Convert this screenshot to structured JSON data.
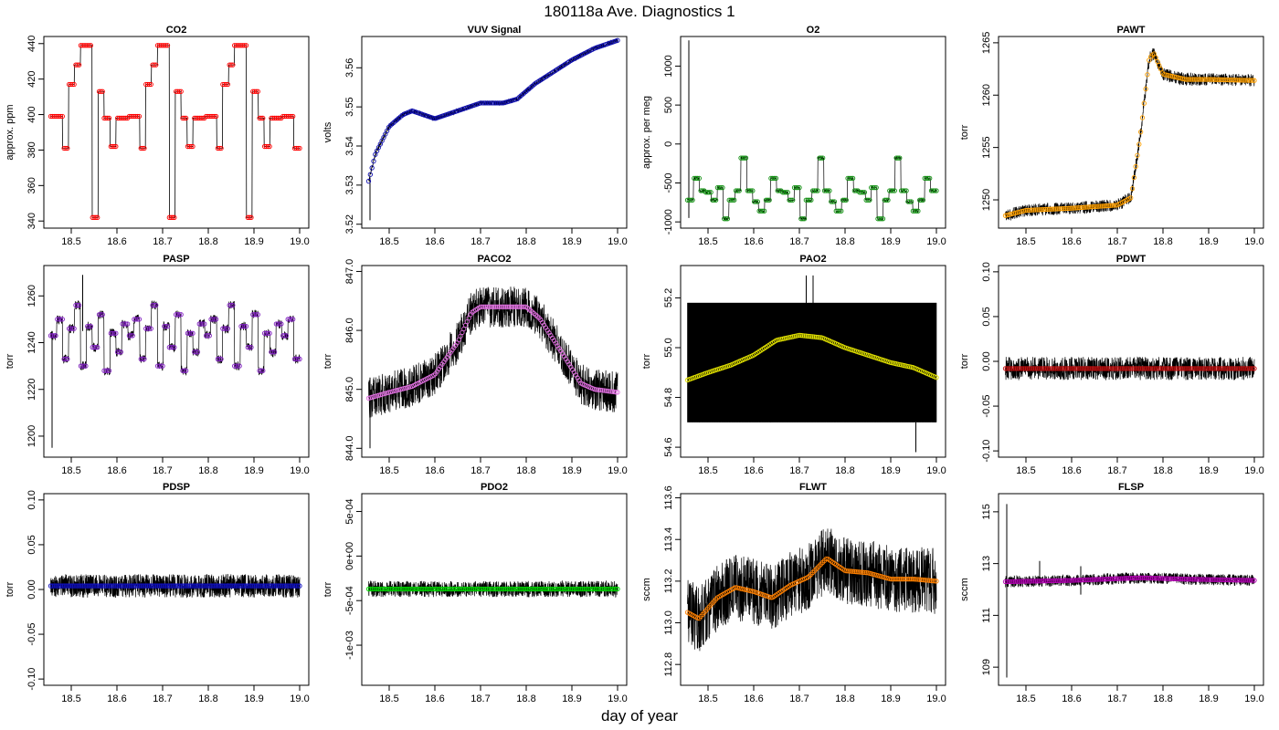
{
  "figure": {
    "title": "180118a   Ave. Diagnostics 1",
    "xlabel": "day of year"
  },
  "chart_data": [
    {
      "type": "line",
      "title": "CO2",
      "ylabel": "approx. ppm",
      "xlim": [
        18.44,
        19.02
      ],
      "ylim": [
        336,
        444
      ],
      "yticks": [
        {
          "v": 340,
          "label": "340"
        },
        {
          "v": 360,
          "label": "360"
        },
        {
          "v": 380,
          "label": "380"
        },
        {
          "v": 400,
          "label": "400"
        },
        {
          "v": 420,
          "label": "420"
        },
        {
          "v": 440,
          "label": "440"
        }
      ],
      "xticks": [
        {
          "v": 18.5,
          "label": "18.5"
        },
        {
          "v": 18.6,
          "label": "18.6"
        },
        {
          "v": 18.7,
          "label": "18.7"
        },
        {
          "v": 18.8,
          "label": "18.8"
        },
        {
          "v": 18.9,
          "label": "18.9"
        },
        {
          "v": 19.0,
          "label": "19.0"
        }
      ],
      "x_start": 18.455,
      "x_end": 19.0,
      "pattern": [
        399,
        399,
        381,
        417,
        428,
        439,
        439,
        342,
        413,
        398,
        382,
        398,
        398
      ],
      "noise": 0,
      "spikes": [],
      "point_color": "#ff0000",
      "point_count": 150
    },
    {
      "type": "line",
      "title": "VUV Signal",
      "ylabel": "volts",
      "xlim": [
        18.44,
        19.02
      ],
      "ylim": [
        3.519,
        3.568
      ],
      "yticks": [
        {
          "v": 3.52,
          "label": "3.52"
        },
        {
          "v": 3.53,
          "label": "3.53"
        },
        {
          "v": 3.54,
          "label": "3.54"
        },
        {
          "v": 3.55,
          "label": "3.55"
        },
        {
          "v": 3.56,
          "label": "3.56"
        }
      ],
      "xticks": [
        {
          "v": 18.5,
          "label": "18.5"
        },
        {
          "v": 18.6,
          "label": "18.6"
        },
        {
          "v": 18.7,
          "label": "18.7"
        },
        {
          "v": 18.8,
          "label": "18.8"
        },
        {
          "v": 18.9,
          "label": "18.9"
        },
        {
          "v": 19.0,
          "label": "19.0"
        }
      ],
      "x_start": 18.455,
      "x_end": 19.0,
      "curve": [
        [
          18.455,
          3.531
        ],
        [
          18.47,
          3.538
        ],
        [
          18.5,
          3.545
        ],
        [
          18.53,
          3.548
        ],
        [
          18.55,
          3.549
        ],
        [
          18.6,
          3.547
        ],
        [
          18.65,
          3.549
        ],
        [
          18.7,
          3.551
        ],
        [
          18.75,
          3.551
        ],
        [
          18.78,
          3.552
        ],
        [
          18.82,
          3.556
        ],
        [
          18.86,
          3.559
        ],
        [
          18.9,
          3.562
        ],
        [
          18.95,
          3.565
        ],
        [
          19.0,
          3.567
        ]
      ],
      "noise": 0.0006,
      "spikes": [
        [
          18.458,
          3.521,
          3.532
        ]
      ],
      "point_color": "#1010b0",
      "point_count": 150
    },
    {
      "type": "line",
      "title": "O2",
      "ylabel": "approx. per meg",
      "xlim": [
        18.44,
        19.02
      ],
      "ylim": [
        -1080,
        1380
      ],
      "yticks": [
        {
          "v": -1000,
          "label": "-1000"
        },
        {
          "v": -500,
          "label": "-500"
        },
        {
          "v": 0,
          "label": "0"
        },
        {
          "v": 500,
          "label": "500"
        },
        {
          "v": 1000,
          "label": "1000"
        }
      ],
      "xticks": [
        {
          "v": 18.5,
          "label": "18.5"
        },
        {
          "v": 18.6,
          "label": "18.6"
        },
        {
          "v": 18.7,
          "label": "18.7"
        },
        {
          "v": 18.8,
          "label": "18.8"
        },
        {
          "v": 18.9,
          "label": "18.9"
        },
        {
          "v": 19.0,
          "label": "19.0"
        }
      ],
      "x_start": 18.455,
      "x_end": 19.0,
      "pattern": [
        -720,
        -440,
        -600,
        -620,
        -720,
        -560,
        -960,
        -720,
        -600,
        -180,
        -600,
        -740,
        -860
      ],
      "noise": 15,
      "spikes": [
        [
          18.458,
          -950,
          1330
        ]
      ],
      "point_color": "#109010",
      "point_count": 150
    },
    {
      "type": "line",
      "title": "PAWT",
      "ylabel": "torr",
      "xlim": [
        18.44,
        19.02
      ],
      "ylim": [
        1247.3,
        1265.6
      ],
      "yticks": [
        {
          "v": 1250,
          "label": "1250"
        },
        {
          "v": 1255,
          "label": "1255"
        },
        {
          "v": 1260,
          "label": "1260"
        },
        {
          "v": 1265,
          "label": "1265"
        }
      ],
      "xticks": [
        {
          "v": 18.5,
          "label": "18.5"
        },
        {
          "v": 18.6,
          "label": "18.6"
        },
        {
          "v": 18.7,
          "label": "18.7"
        },
        {
          "v": 18.8,
          "label": "18.8"
        },
        {
          "v": 18.9,
          "label": "18.9"
        },
        {
          "v": 19.0,
          "label": "19.0"
        }
      ],
      "x_start": 18.455,
      "x_end": 19.0,
      "curve": [
        [
          18.455,
          1248.5
        ],
        [
          18.5,
          1249.0
        ],
        [
          18.6,
          1249.2
        ],
        [
          18.7,
          1249.5
        ],
        [
          18.73,
          1250.2
        ],
        [
          18.75,
          1256.0
        ],
        [
          18.77,
          1263.5
        ],
        [
          18.78,
          1264.0
        ],
        [
          18.8,
          1262.0
        ],
        [
          18.85,
          1261.5
        ],
        [
          18.9,
          1261.5
        ],
        [
          19.0,
          1261.4
        ]
      ],
      "noise": 0.6,
      "spikes": [],
      "point_color": "#ffa000",
      "point_count": 150
    },
    {
      "type": "line",
      "title": "PASP",
      "ylabel": "torr",
      "xlim": [
        18.44,
        19.02
      ],
      "ylim": [
        1191,
        1273
      ],
      "yticks": [
        {
          "v": 1200,
          "label": "1200"
        },
        {
          "v": 1220,
          "label": "1220"
        },
        {
          "v": 1240,
          "label": "1240"
        },
        {
          "v": 1260,
          "label": "1260"
        }
      ],
      "xticks": [
        {
          "v": 18.5,
          "label": "18.5"
        },
        {
          "v": 18.6,
          "label": "18.6"
        },
        {
          "v": 18.7,
          "label": "18.7"
        },
        {
          "v": 18.8,
          "label": "18.8"
        },
        {
          "v": 18.9,
          "label": "18.9"
        },
        {
          "v": 19.0,
          "label": "19.0"
        }
      ],
      "x_start": 18.455,
      "x_end": 19.0,
      "pattern": [
        1243,
        1250,
        1233,
        1246,
        1256,
        1230,
        1247,
        1238,
        1252,
        1228,
        1244,
        1236,
        1248
      ],
      "noise": 2,
      "spikes": [
        [
          18.458,
          1195,
          1245
        ],
        [
          18.525,
          1245,
          1269
        ]
      ],
      "point_color": "#8020c0",
      "point_count": 150
    },
    {
      "type": "line",
      "title": "PACO2",
      "ylabel": "torr",
      "xlim": [
        18.44,
        19.02
      ],
      "ylim": [
        843.85,
        847.1
      ],
      "yticks": [
        {
          "v": 844,
          "label": "844.0"
        },
        {
          "v": 845,
          "label": "845.0"
        },
        {
          "v": 846,
          "label": "846.0"
        },
        {
          "v": 847,
          "label": "847.0"
        }
      ],
      "xticks": [
        {
          "v": 18.5,
          "label": "18.5"
        },
        {
          "v": 18.6,
          "label": "18.6"
        },
        {
          "v": 18.7,
          "label": "18.7"
        },
        {
          "v": 18.8,
          "label": "18.8"
        },
        {
          "v": 18.9,
          "label": "18.9"
        },
        {
          "v": 19.0,
          "label": "19.0"
        }
      ],
      "x_start": 18.455,
      "x_end": 19.0,
      "curve": [
        [
          18.455,
          844.85
        ],
        [
          18.5,
          844.95
        ],
        [
          18.55,
          845.05
        ],
        [
          18.6,
          845.25
        ],
        [
          18.65,
          845.8
        ],
        [
          18.68,
          846.3
        ],
        [
          18.7,
          846.4
        ],
        [
          18.8,
          846.4
        ],
        [
          18.83,
          846.2
        ],
        [
          18.88,
          845.6
        ],
        [
          18.92,
          845.1
        ],
        [
          18.95,
          845.0
        ],
        [
          19.0,
          844.95
        ]
      ],
      "noise": 0.35,
      "spikes": [
        [
          18.458,
          844.0,
          845.2
        ]
      ],
      "point_color": "#e070e0",
      "point_count": 150
    },
    {
      "type": "line",
      "title": "PAO2",
      "ylabel": "torr",
      "xlim": [
        18.44,
        19.02
      ],
      "ylim": [
        54.56,
        55.33
      ],
      "yticks": [
        {
          "v": 54.6,
          "label": "54.6"
        },
        {
          "v": 54.8,
          "label": "54.8"
        },
        {
          "v": 55.0,
          "label": "55.0"
        },
        {
          "v": 55.2,
          "label": "55.2"
        }
      ],
      "xticks": [
        {
          "v": 18.5,
          "label": "18.5"
        },
        {
          "v": 18.6,
          "label": "18.6"
        },
        {
          "v": 18.7,
          "label": "18.7"
        },
        {
          "v": 18.8,
          "label": "18.8"
        },
        {
          "v": 18.9,
          "label": "18.9"
        },
        {
          "v": 19.0,
          "label": "19.0"
        }
      ],
      "x_start": 18.455,
      "x_end": 19.0,
      "curve": [
        [
          18.455,
          54.87
        ],
        [
          18.5,
          54.9
        ],
        [
          18.55,
          54.93
        ],
        [
          18.6,
          54.97
        ],
        [
          18.65,
          55.03
        ],
        [
          18.7,
          55.05
        ],
        [
          18.75,
          55.04
        ],
        [
          18.8,
          55.0
        ],
        [
          18.85,
          54.97
        ],
        [
          18.9,
          54.94
        ],
        [
          18.95,
          54.92
        ],
        [
          19.0,
          54.88
        ]
      ],
      "noise": 0,
      "band": [
        54.7,
        55.18
      ],
      "spikes": [
        [
          18.715,
          55.15,
          55.29
        ],
        [
          18.73,
          55.15,
          55.29
        ],
        [
          18.955,
          54.58,
          54.7
        ]
      ],
      "point_color": "#e0e000",
      "point_count": 150
    },
    {
      "type": "line",
      "title": "PDWT",
      "ylabel": "torr",
      "xlim": [
        18.44,
        19.02
      ],
      "ylim": [
        -0.107,
        0.107
      ],
      "yticks": [
        {
          "v": -0.1,
          "label": "-0.10"
        },
        {
          "v": -0.05,
          "label": "-0.05"
        },
        {
          "v": 0,
          "label": "0.00"
        },
        {
          "v": 0.05,
          "label": "0.05"
        },
        {
          "v": 0.1,
          "label": "0.10"
        }
      ],
      "xticks": [
        {
          "v": 18.5,
          "label": "18.5"
        },
        {
          "v": 18.6,
          "label": "18.6"
        },
        {
          "v": 18.7,
          "label": "18.7"
        },
        {
          "v": 18.8,
          "label": "18.8"
        },
        {
          "v": 18.9,
          "label": "18.9"
        },
        {
          "v": 19.0,
          "label": "19.0"
        }
      ],
      "x_start": 18.455,
      "x_end": 19.0,
      "curve": [
        [
          18.455,
          -0.008
        ],
        [
          19.0,
          -0.008
        ]
      ],
      "noise": 0.013,
      "spikes": [],
      "point_color": "#c01010",
      "point_count": 150
    },
    {
      "type": "line",
      "title": "PDSP",
      "ylabel": "torr",
      "xlim": [
        18.44,
        19.02
      ],
      "ylim": [
        -0.107,
        0.107
      ],
      "yticks": [
        {
          "v": -0.1,
          "label": "-0.10"
        },
        {
          "v": -0.05,
          "label": "-0.05"
        },
        {
          "v": 0,
          "label": "0.00"
        },
        {
          "v": 0.05,
          "label": "0.05"
        },
        {
          "v": 0.1,
          "label": "0.10"
        }
      ],
      "xticks": [
        {
          "v": 18.5,
          "label": "18.5"
        },
        {
          "v": 18.6,
          "label": "18.6"
        },
        {
          "v": 18.7,
          "label": "18.7"
        },
        {
          "v": 18.8,
          "label": "18.8"
        },
        {
          "v": 18.9,
          "label": "18.9"
        },
        {
          "v": 19.0,
          "label": "19.0"
        }
      ],
      "x_start": 18.455,
      "x_end": 19.0,
      "curve": [
        [
          18.455,
          0.004
        ],
        [
          19.0,
          0.004
        ]
      ],
      "noise": 0.013,
      "spikes": [],
      "point_color": "#1010c0",
      "point_count": 150
    },
    {
      "type": "line",
      "title": "PDO2",
      "ylabel": "torr",
      "xlim": [
        18.44,
        19.02
      ],
      "ylim": [
        -0.00145,
        0.0007
      ],
      "yticks": [
        {
          "v": -0.001,
          "label": "-1e-03"
        },
        {
          "v": -0.0005,
          "label": "-5e-04"
        },
        {
          "v": 0,
          "label": "0e+00"
        },
        {
          "v": 0.0005,
          "label": "5e-04"
        }
      ],
      "xticks": [
        {
          "v": 18.5,
          "label": "18.5"
        },
        {
          "v": 18.6,
          "label": "18.6"
        },
        {
          "v": 18.7,
          "label": "18.7"
        },
        {
          "v": 18.8,
          "label": "18.8"
        },
        {
          "v": 18.9,
          "label": "18.9"
        },
        {
          "v": 19.0,
          "label": "19.0"
        }
      ],
      "x_start": 18.455,
      "x_end": 19.0,
      "curve": [
        [
          18.455,
          -0.00037
        ],
        [
          19.0,
          -0.00037
        ]
      ],
      "noise": 9e-05,
      "spikes": [],
      "point_color": "#00d000",
      "point_count": 150
    },
    {
      "type": "line",
      "title": "FLWT",
      "ylabel": "sccm",
      "xlim": [
        18.44,
        19.02
      ],
      "ylim": [
        112.7,
        113.62
      ],
      "yticks": [
        {
          "v": 112.8,
          "label": "112.8"
        },
        {
          "v": 113.0,
          "label": "113.0"
        },
        {
          "v": 113.2,
          "label": "113.2"
        },
        {
          "v": 113.4,
          "label": "113.4"
        },
        {
          "v": 113.6,
          "label": "113.6"
        }
      ],
      "xticks": [
        {
          "v": 18.5,
          "label": "18.5"
        },
        {
          "v": 18.6,
          "label": "18.6"
        },
        {
          "v": 18.7,
          "label": "18.7"
        },
        {
          "v": 18.8,
          "label": "18.8"
        },
        {
          "v": 18.9,
          "label": "18.9"
        },
        {
          "v": 19.0,
          "label": "19.0"
        }
      ],
      "x_start": 18.455,
      "x_end": 19.0,
      "curve": [
        [
          18.455,
          113.05
        ],
        [
          18.48,
          113.02
        ],
        [
          18.52,
          113.12
        ],
        [
          18.56,
          113.17
        ],
        [
          18.6,
          113.15
        ],
        [
          18.64,
          113.12
        ],
        [
          18.68,
          113.18
        ],
        [
          18.72,
          113.22
        ],
        [
          18.76,
          113.31
        ],
        [
          18.8,
          113.25
        ],
        [
          18.85,
          113.24
        ],
        [
          18.9,
          113.21
        ],
        [
          18.95,
          113.21
        ],
        [
          19.0,
          113.2
        ]
      ],
      "noise": 0.16,
      "spikes": [],
      "point_color": "#ff8000",
      "point_count": 150
    },
    {
      "type": "line",
      "title": "FLSP",
      "ylabel": "sccm",
      "xlim": [
        18.44,
        19.02
      ],
      "ylim": [
        108.3,
        115.7
      ],
      "yticks": [
        {
          "v": 109,
          "label": "109"
        },
        {
          "v": 111,
          "label": "111"
        },
        {
          "v": 113,
          "label": "113"
        },
        {
          "v": 115,
          "label": "115"
        }
      ],
      "xticks": [
        {
          "v": 18.5,
          "label": "18.5"
        },
        {
          "v": 18.6,
          "label": "18.6"
        },
        {
          "v": 18.7,
          "label": "18.7"
        },
        {
          "v": 18.8,
          "label": "18.8"
        },
        {
          "v": 18.9,
          "label": "18.9"
        },
        {
          "v": 19.0,
          "label": "19.0"
        }
      ],
      "x_start": 18.455,
      "x_end": 19.0,
      "curve": [
        [
          18.455,
          112.3
        ],
        [
          18.6,
          112.35
        ],
        [
          18.75,
          112.45
        ],
        [
          18.85,
          112.4
        ],
        [
          19.0,
          112.35
        ]
      ],
      "noise": 0.22,
      "spikes": [
        [
          18.458,
          108.6,
          115.3
        ],
        [
          18.53,
          112.3,
          113.1
        ],
        [
          18.62,
          111.8,
          112.9
        ]
      ],
      "point_color": "#b000b0",
      "point_count": 150
    }
  ]
}
